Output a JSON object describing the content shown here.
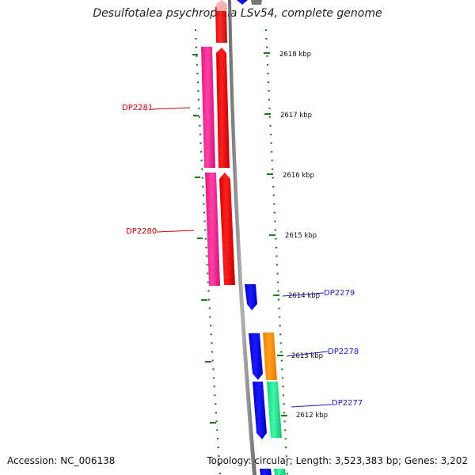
{
  "title": "Desulfotalea psychrophila LSv54, complete genome",
  "footer": {
    "accession": "Accession: NC_006138",
    "stats": "Topology: circular; Length: 3,523,383 bp; Genes: 3,202"
  },
  "scale_labels": [
    "2618 kbp",
    "2617 kbp",
    "2616 kbp",
    "2615 kbp",
    "2614 kbp",
    "2613 kbp",
    "2612 kbp"
  ],
  "genes": {
    "dp2281": "DP2281",
    "dp2280": "DP2280",
    "dp2279": "DP2279",
    "dp2278": "DP2278",
    "dp2277": "DP2277"
  },
  "colors": {
    "red": "#ff1010",
    "magenta": "#f01890",
    "blue": "#0a0af0",
    "orange": "#ff9000",
    "green": "#20e890",
    "backbone": "#8c8c8c",
    "ticks": "#1e7a1e",
    "label_red": "#cc0000",
    "label_blue": "#1a1acc"
  }
}
